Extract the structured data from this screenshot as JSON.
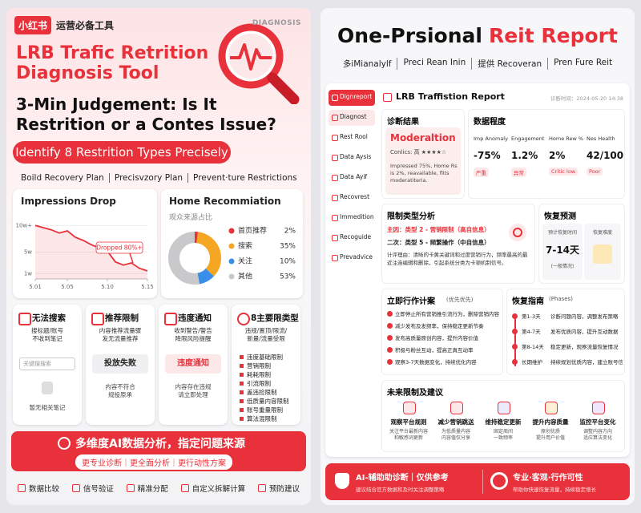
{
  "left": {
    "brand": "小红书",
    "brand_tagline": "运营必备工具",
    "badge": "DIAGNOSIS",
    "title": "LRB Trafic Retrition Diagnosis Tool",
    "headline": "3-Min Judgement: Is It Restrition or a Contes Issue?",
    "pill": "Identify 8 Restrition Types Precisely",
    "plans": [
      "Boild Recovery Plan",
      "Precisvzory Plan",
      "Prevent·ture Restrictions"
    ],
    "cards": [
      {
        "title": "无法搜索",
        "desc": "搜标题/账号\n不收到笔记",
        "box": "关键搜搜索",
        "foot": "暂无相关笔记"
      },
      {
        "title": "推荐限制",
        "desc": "内容推荐流量骤\n发无流量推荐",
        "box": "投放失败",
        "foot": "内容不符合\n规投原承"
      },
      {
        "title": "违度通知",
        "desc": "收到警告/警告\n降限风险提醒",
        "box": "违度通知",
        "foot": "内容存在违规\n请立即处理"
      },
      {
        "title": "8主要限类型",
        "desc": "违规/置顶/限流/\n新量/流量受限",
        "items": [
          "违度基础限制",
          "营销限制",
          "耗耗限制",
          "引流限制",
          "盖违捡限制",
          "低质量内容限制",
          "账号重量限制",
          "算法混限制"
        ]
      }
    ],
    "banner": {
      "title": "多维度AI数据分析，指定问题来源",
      "sub": "更专业诊断｜更全面分析｜更行动性方案"
    },
    "features": [
      "数据比较",
      "信号验证",
      "精准分配",
      "自定义拆解计算",
      "预防建议"
    ]
  },
  "chart_data": [
    {
      "type": "line",
      "title": "Impressions Drop",
      "x": [
        1,
        2,
        3,
        4,
        5,
        6,
        7,
        8,
        9,
        10,
        11,
        12,
        13,
        14,
        15
      ],
      "values": [
        10,
        9.6,
        9.2,
        8.6,
        9,
        7.8,
        7.2,
        6.4,
        5.8,
        5.2,
        3.2,
        2.6,
        3,
        2,
        1.5
      ],
      "color": "#e8313a",
      "xlim": [
        1,
        15
      ],
      "xticks": [
        {
          "value": 1,
          "label": "5.01"
        },
        {
          "value": 5,
          "label": "5.05"
        },
        {
          "value": 10,
          "label": "5.10"
        },
        {
          "value": 15,
          "label": "5.15"
        }
      ],
      "ylim": [
        0,
        12
      ],
      "yticks": [
        {
          "value": 10,
          "label": "10w+"
        },
        {
          "value": 5,
          "label": "5w"
        },
        {
          "value": 1,
          "label": "1w"
        }
      ],
      "annotation": "Dropped 80%+"
    },
    {
      "type": "pie",
      "title": "Home Recommiation",
      "subtitle": "观众来源占比",
      "categories": [
        "首页推荐",
        "搜索",
        "关注",
        "其他"
      ],
      "values": [
        2,
        35,
        10,
        53
      ],
      "value_labels": [
        "2%",
        "35%",
        "10%",
        "53%"
      ],
      "colors": [
        "#e8313a",
        "#f5a623",
        "#3b8ee8",
        "#c9c9cc"
      ],
      "donut": true
    }
  ],
  "right": {
    "title_a": "One-Prsional",
    "title_b": "Reit Report",
    "tabs": [
      "多iMianalylf",
      "Preci Rean Inin",
      "提供 Recoveran",
      "Pren Fure Reit"
    ],
    "sidebar": [
      "Dignreport",
      "Diagnost",
      "Rest Rool",
      "Data Aysis",
      "Data Ayif",
      "Recovrest",
      "Immedition",
      "Recoguide",
      "Prevadvice"
    ],
    "report_title": "LRB Traffistion Report",
    "report_time": "诊断时间：2024-05-20 14:38",
    "result": {
      "heading": "诊断结果",
      "level": "Moderaltion",
      "confidence": "Conlics: 高 ★★★★☆",
      "note": "Impressed 75%, Home Rs is 2%, reavailable, flits moderatiteria."
    },
    "metrics": {
      "heading": "数据程度",
      "items": [
        {
          "label": "Imp Anomaly",
          "value": "-75%",
          "status": "严重"
        },
        {
          "label": "Engagement",
          "value": "1.2%",
          "status": "异常"
        },
        {
          "label": "Home Rew %",
          "value": "2%",
          "status": "Critic low"
        },
        {
          "label": "Nes Health",
          "value": "42/100",
          "status": "Poor"
        }
      ]
    },
    "restriction": {
      "heading": "限制类型分析",
      "primary": "主因：类型 2 - 营销限制（高自信息）",
      "secondary": "二次：类型 5 - 频繁操作（中自信息）",
      "reason": "计评理由：清晰的卡黄关键词和过度营销行为，频率最高的最近注连编辑和删除，引起系统分类为卡顿机制信号。"
    },
    "forecast": {
      "heading": "恢复预测",
      "time_label": "预计恢复时间",
      "time": "7-14天",
      "time_note": "(一般情况)",
      "difficulty_label": "恢复难度"
    },
    "actions": {
      "heading": "立即行作计案",
      "note": "(优先优先)",
      "items": [
        "立即停止所有营销推引流行为，删除营销内容",
        "减少发布及发频率，保持稳定更新节奏",
        "发布高质量原创内容，提升内容价值",
        "积极与粉丝互动，提高正真互动率",
        "观察3-7天数据变化，持续优化内容"
      ]
    },
    "guide": {
      "heading": "恢复指南",
      "note": "(Phases)",
      "phases": [
        {
          "when": "第1-3天",
          "what": "诊断问题内容，调整发布策略"
        },
        {
          "when": "第4-7天",
          "what": "发布优质内容，提升互动数据"
        },
        {
          "when": "第8-14天",
          "what": "稳定更新，观察流量恢复情况"
        },
        {
          "when": "长期维护",
          "what": "持续规划优质内容，建立账号信用"
        }
      ]
    },
    "future": {
      "heading": "未来限制及建议",
      "items": [
        {
          "title": "观察平台规则",
          "desc": "关注平台最新内容\n和敏感词更新"
        },
        {
          "title": "减少营销跳送",
          "desc": "为低质量内容\n内容值仅分享"
        },
        {
          "title": "维持稳定更新",
          "desc": "固定周间\n一致频率"
        },
        {
          "title": "提升内容质量",
          "desc": "原创优质\n提升用户价值"
        },
        {
          "title": "监控平台变化",
          "desc": "调整内容方向\n适应算法变化"
        }
      ]
    },
    "footer": {
      "left_title": "AI-辅助助诊断｜仅供参考",
      "left_sub": "建议结合官方数据和及时关注调整策略",
      "right_title": "专业·客观·行作可性",
      "right_sub": "帮助你快速恢复流量，持续稳定增长"
    }
  }
}
